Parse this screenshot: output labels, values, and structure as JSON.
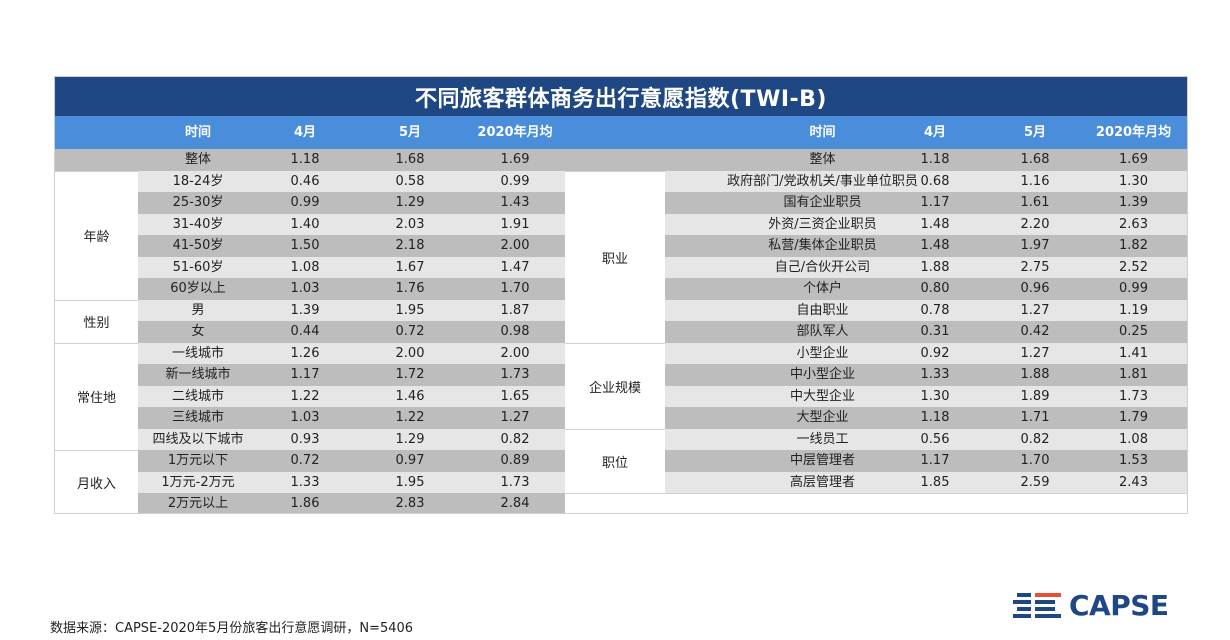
{
  "title": "不同旅客群体商务出行意愿指数(TWI-B)",
  "header": {
    "left": [
      "时间",
      "4月",
      "5月",
      "2020年月均"
    ],
    "right": [
      "时间",
      "4月",
      "5月",
      "2020年月均"
    ]
  },
  "overall": {
    "left": [
      "整体",
      "1.18",
      "1.68",
      "1.69"
    ],
    "right": [
      "整体",
      "1.18",
      "1.68",
      "1.69"
    ]
  },
  "left_groups": [
    {
      "name": "年龄",
      "rows": [
        [
          "18-24岁",
          "0.46",
          "0.58",
          "0.99"
        ],
        [
          "25-30岁",
          "0.99",
          "1.29",
          "1.43"
        ],
        [
          "31-40岁",
          "1.40",
          "2.03",
          "1.91"
        ],
        [
          "41-50岁",
          "1.50",
          "2.18",
          "2.00"
        ],
        [
          "51-60岁",
          "1.08",
          "1.67",
          "1.47"
        ],
        [
          "60岁以上",
          "1.03",
          "1.76",
          "1.70"
        ]
      ]
    },
    {
      "name": "性别",
      "rows": [
        [
          "男",
          "1.39",
          "1.95",
          "1.87"
        ],
        [
          "女",
          "0.44",
          "0.72",
          "0.98"
        ]
      ]
    },
    {
      "name": "常住地",
      "rows": [
        [
          "一线城市",
          "1.26",
          "2.00",
          "2.00"
        ],
        [
          "新一线城市",
          "1.17",
          "1.72",
          "1.73"
        ],
        [
          "二线城市",
          "1.22",
          "1.46",
          "1.65"
        ],
        [
          "三线城市",
          "1.03",
          "1.22",
          "1.27"
        ],
        [
          "四线及以下城市",
          "0.93",
          "1.29",
          "0.82"
        ]
      ]
    },
    {
      "name": "月收入",
      "rows": [
        [
          "1万元以下",
          "0.72",
          "0.97",
          "0.89"
        ],
        [
          "1万元-2万元",
          "1.33",
          "1.95",
          "1.73"
        ],
        [
          "2万元以上",
          "1.86",
          "2.83",
          "2.84"
        ]
      ]
    }
  ],
  "right_groups": [
    {
      "name": "职业",
      "rows": [
        [
          "政府部门/党政机关/事业单位职员",
          "0.68",
          "1.16",
          "1.30"
        ],
        [
          "国有企业职员",
          "1.17",
          "1.61",
          "1.39"
        ],
        [
          "外资/三资企业职员",
          "1.48",
          "2.20",
          "2.63"
        ],
        [
          "私营/集体企业职员",
          "1.48",
          "1.97",
          "1.82"
        ],
        [
          "自己/合伙开公司",
          "1.88",
          "2.75",
          "2.52"
        ],
        [
          "个体户",
          "0.80",
          "0.96",
          "0.99"
        ],
        [
          "自由职业",
          "0.78",
          "1.27",
          "1.19"
        ],
        [
          "部队军人",
          "0.31",
          "0.42",
          "0.25"
        ]
      ]
    },
    {
      "name": "企业规模",
      "rows": [
        [
          "小型企业",
          "0.92",
          "1.27",
          "1.41"
        ],
        [
          "中小型企业",
          "1.33",
          "1.88",
          "1.81"
        ],
        [
          "中大型企业",
          "1.30",
          "1.89",
          "1.73"
        ],
        [
          "大型企业",
          "1.18",
          "1.71",
          "1.79"
        ]
      ]
    },
    {
      "name": "职位",
      "rows": [
        [
          "一线员工",
          "0.56",
          "0.82",
          "1.08"
        ],
        [
          "中层管理者",
          "1.17",
          "1.70",
          "1.53"
        ],
        [
          "高层管理者",
          "1.85",
          "2.59",
          "2.43"
        ]
      ]
    }
  ],
  "footer": "数据来源：CAPSE-2020年5月份旅客出行意愿调研，N=5406",
  "logo": {
    "text": "CAPSE",
    "color": "#1e4784",
    "accent": "#e8502f"
  },
  "colors": {
    "title_bg": "#1e4784",
    "header_bg": "#4a8edb",
    "row_dark": "#bdbdbd",
    "row_light": "#e6e6e6"
  }
}
